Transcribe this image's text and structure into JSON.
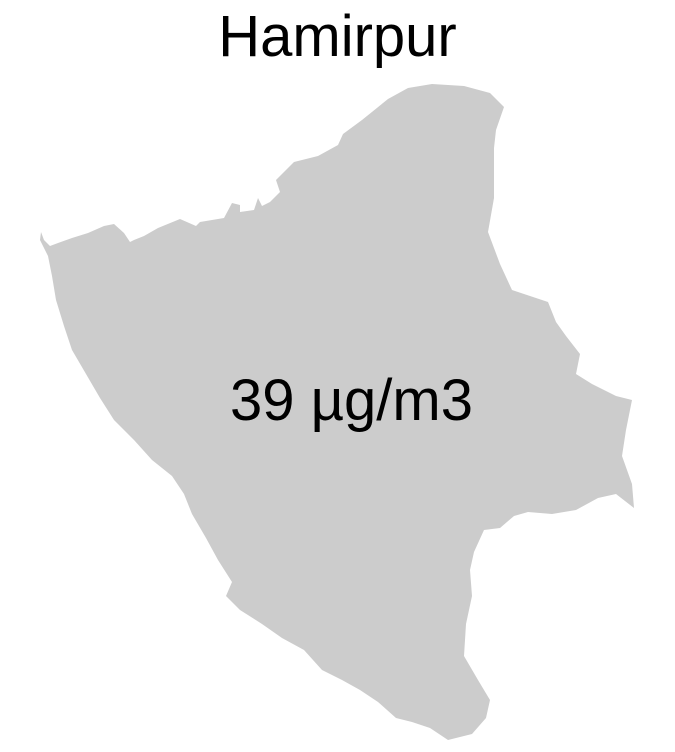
{
  "map": {
    "title": "Hamirpur",
    "region_fill": "#cccccc",
    "value_label": "39 µg/m3"
  }
}
